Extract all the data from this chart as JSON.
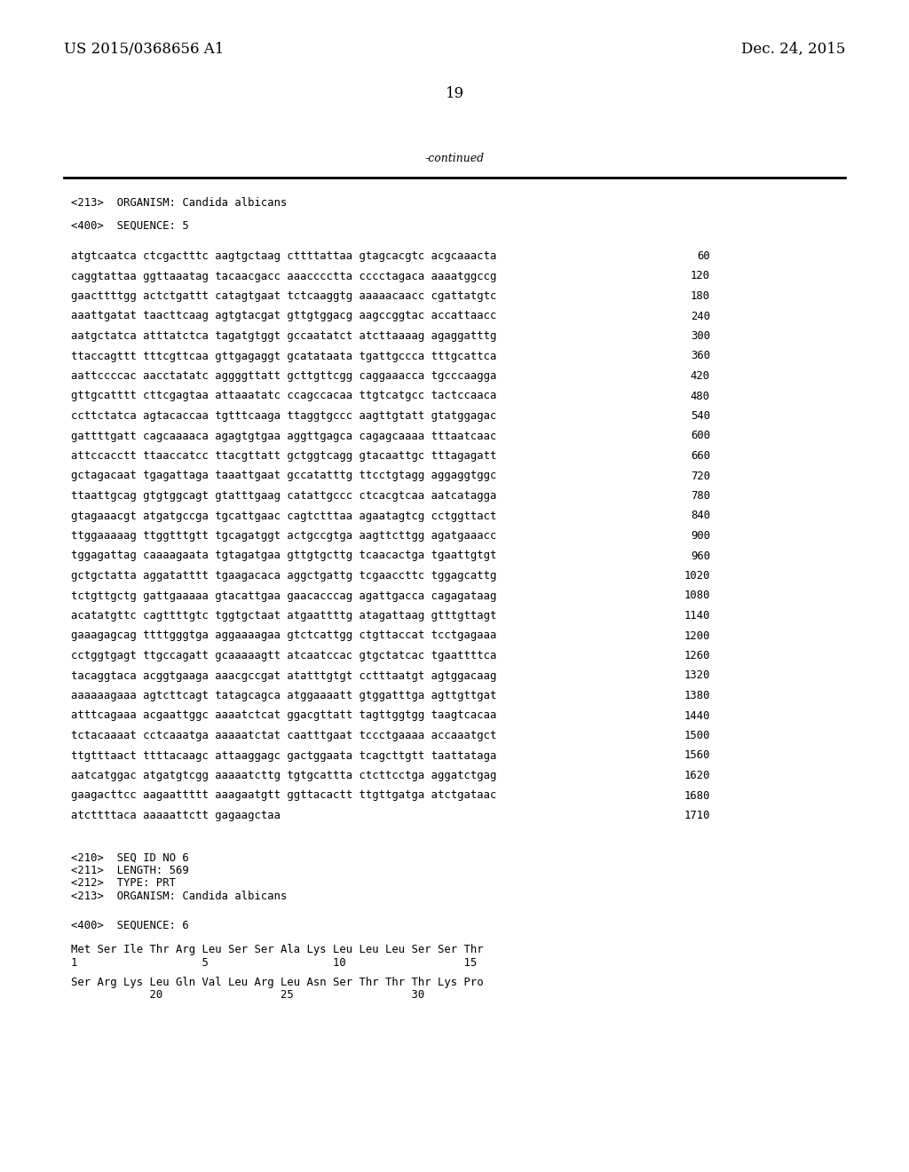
{
  "header_left": "US 2015/0368656 A1",
  "header_right": "Dec. 24, 2015",
  "page_number": "19",
  "continued_label": "-continued",
  "background_color": "#ffffff",
  "text_color": "#000000",
  "header_fontsize": 12,
  "mono_fontsize": 8.8,
  "organism_line": "<213>  ORGANISM: Candida albicans",
  "sequence_label": "<400>  SEQUENCE: 5",
  "seq_lines": [
    [
      "atgtcaatca ctcgactttc aagtgctaag cttttattaa gtagcacgtc acgcaaacta",
      "60"
    ],
    [
      "caggtattaa ggttaaatag tacaacgacc aaacccctta cccctagaca aaaatggccg",
      "120"
    ],
    [
      "gaacttttgg actctgattt catagtgaat tctcaaggtg aaaaacaacc cgattatgtc",
      "180"
    ],
    [
      "aaattgatat taacttcaag agtgtacgat gttgtggacg aagccggtac accattaacc",
      "240"
    ],
    [
      "aatgctatca atttatctca tagatgtggt gccaatatct atcttaaaag agaggatttg",
      "300"
    ],
    [
      "ttaccagttt tttcgttcaa gttgagaggt gcatataata tgattgccca tttgcattca",
      "360"
    ],
    [
      "aattccccac aacctatatc aggggttatt gcttgttcgg caggaaacca tgcccaagga",
      "420"
    ],
    [
      "gttgcatttt cttcgagtaa attaaatatc ccagccacaa ttgtcatgcc tactccaaca",
      "480"
    ],
    [
      "ccttctatca agtacaccaa tgtttcaaga ttaggtgccc aagttgtatt gtatggagac",
      "540"
    ],
    [
      "gattttgatt cagcaaaaca agagtgtgaa aggttgagca cagagcaaaa tttaatcaac",
      "600"
    ],
    [
      "attccacctt ttaaccatcc ttacgttatt gctggtcagg gtacaattgc tttagagatt",
      "660"
    ],
    [
      "gctagacaat tgagattaga taaattgaat gccatatttg ttcctgtagg aggaggtggc",
      "720"
    ],
    [
      "ttaattgcag gtgtggcagt gtatttgaag catattgccc ctcacgtcaa aatcatagga",
      "780"
    ],
    [
      "gtagaaacgt atgatgccga tgcattgaac cagtctttaa agaatagtcg cctggttact",
      "840"
    ],
    [
      "ttggaaaaag ttggtttgtt tgcagatggt actgccgtga aagttcttgg agatgaaacc",
      "900"
    ],
    [
      "tggagattag caaaagaata tgtagatgaa gttgtgcttg tcaacactga tgaattgtgt",
      "960"
    ],
    [
      "gctgctatta aggatatttt tgaagacaca aggctgattg tcgaaccttc tggagcattg",
      "1020"
    ],
    [
      "tctgttgctg gattgaaaaa gtacattgaa gaacacccag agattgacca cagagataag",
      "1080"
    ],
    [
      "acatatgttc cagttttgtc tggtgctaat atgaattttg atagattaag gtttgttagt",
      "1140"
    ],
    [
      "gaaagagcag ttttgggtga aggaaaagaa gtctcattgg ctgttaccat tcctgagaaa",
      "1200"
    ],
    [
      "cctggtgagt ttgccagatt gcaaaaagtt atcaatccac gtgctatcac tgaattttca",
      "1260"
    ],
    [
      "tacaggtaca acggtgaaga aaacgccgat atatttgtgt cctttaatgt agtggacaag",
      "1320"
    ],
    [
      "aaaaaagaaa agtcttcagt tatagcagca atggaaaatt gtggatttga agttgttgat",
      "1380"
    ],
    [
      "atttcagaaa acgaattggc aaaatctcat ggacgttatt tagttggtgg taagtcacaa",
      "1440"
    ],
    [
      "tctacaaaat cctcaaatga aaaaatctat caatttgaat tccctgaaaa accaaatgct",
      "1500"
    ],
    [
      "ttgtttaact ttttacaagc attaaggagc gactggaata tcagcttgtt taattataga",
      "1560"
    ],
    [
      "aatcatggac atgatgtcgg aaaaatcttg tgtgcattta ctcttcctga aggatctgag",
      "1620"
    ],
    [
      "gaagacttcc aagaattttt aaagaatgtt ggttacactt ttgttgatga atctgataac",
      "1680"
    ],
    [
      "atcttttaca aaaaattctt gagaagctaa",
      "1710"
    ]
  ],
  "footer_lines": [
    "<210>  SEQ ID NO 6",
    "<211>  LENGTH: 569",
    "<212>  TYPE: PRT",
    "<213>  ORGANISM: Candida albicans"
  ],
  "seq6_label": "<400>  SEQUENCE: 6",
  "prot_seq1": "Met Ser Ile Thr Arg Leu Ser Ser Ala Lys Leu Leu Leu Ser Ser Thr",
  "prot_num1": "1                   5                   10                  15",
  "prot_seq2": "Ser Arg Lys Leu Gln Val Leu Arg Leu Asn Ser Thr Thr Thr Lys Pro",
  "prot_num2": "            20                  25                  30"
}
